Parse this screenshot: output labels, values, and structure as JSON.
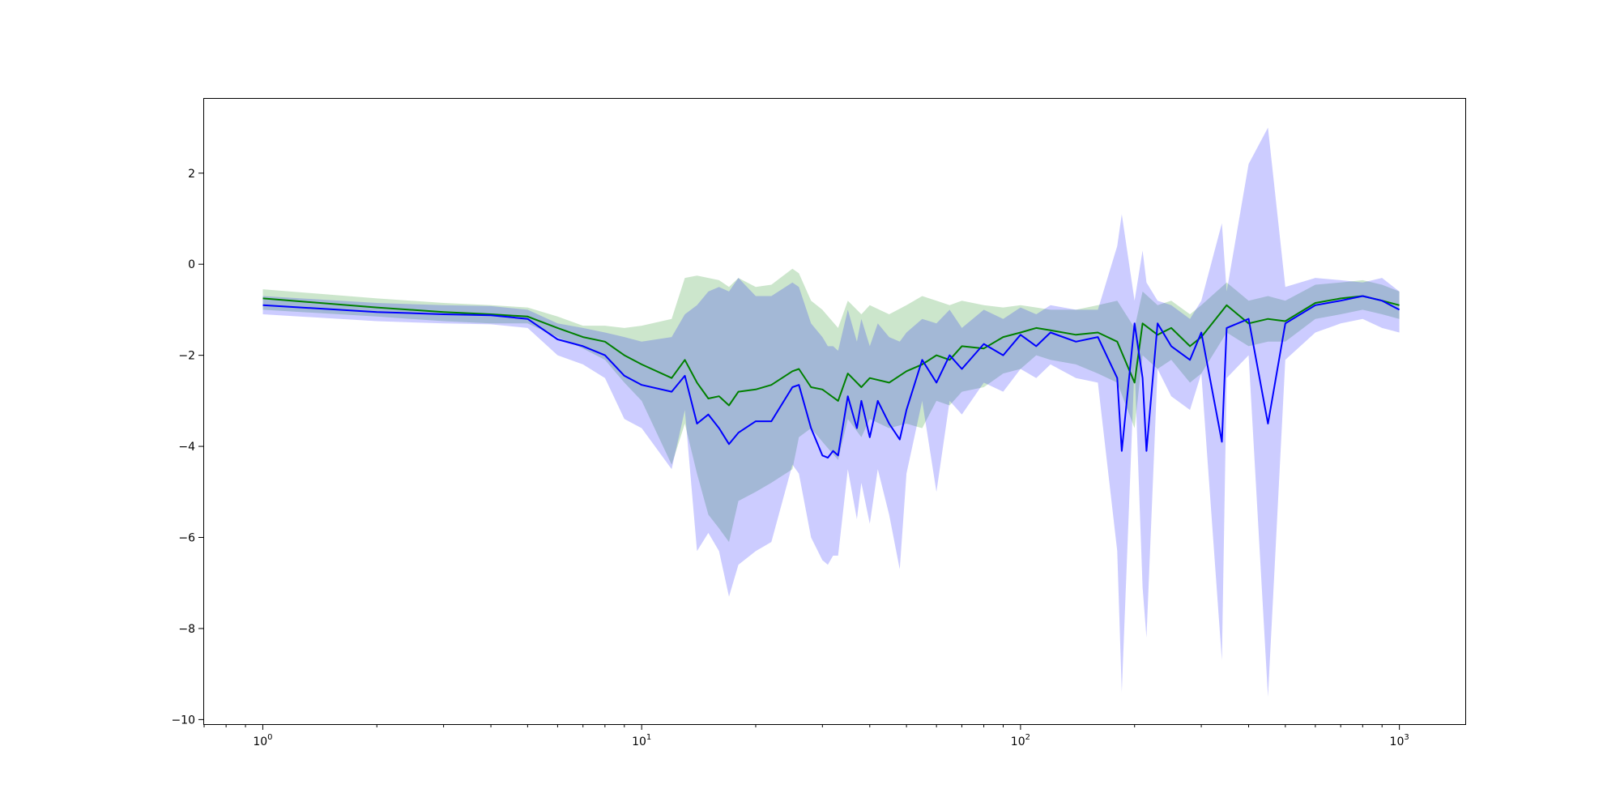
{
  "chart_data": {
    "type": "line",
    "title": "",
    "xlabel": "",
    "ylabel": "",
    "xscale": "log",
    "xlim": [
      0.7,
      1500
    ],
    "ylim": [
      -10.1,
      3.65
    ],
    "grid": false,
    "legend": "none",
    "x_ticks": [
      {
        "value": 1,
        "base": "10",
        "exp": "0"
      },
      {
        "value": 10,
        "base": "10",
        "exp": "1"
      },
      {
        "value": 100,
        "base": "10",
        "exp": "2"
      },
      {
        "value": 1000,
        "base": "10",
        "exp": "3"
      }
    ],
    "y_ticks": [
      {
        "value": 2,
        "label": "2"
      },
      {
        "value": 0,
        "label": "0"
      },
      {
        "value": -2,
        "label": "−2"
      },
      {
        "value": -4,
        "label": "−4"
      },
      {
        "value": -6,
        "label": "−6"
      },
      {
        "value": -8,
        "label": "−8"
      },
      {
        "value": -10,
        "label": "−10"
      }
    ],
    "colors": {
      "green_line": "#008000",
      "green_band": "#008000",
      "blue_line": "#0000ff",
      "blue_band": "#0000ff",
      "band_opacity": 0.2
    },
    "series": [
      {
        "color": "green",
        "x": [
          1,
          2,
          3,
          4,
          5,
          6,
          7,
          8,
          9,
          10,
          12,
          13,
          14,
          15,
          16,
          17,
          18,
          20,
          22,
          25,
          26,
          28,
          30,
          33,
          35,
          38,
          40,
          45,
          50,
          55,
          60,
          65,
          70,
          80,
          90,
          100,
          110,
          120,
          140,
          160,
          180,
          200,
          210,
          230,
          250,
          280,
          300,
          350,
          400,
          450,
          500,
          600,
          700,
          800,
          900,
          1000
        ],
        "mean": [
          -0.75,
          -0.95,
          -1.05,
          -1.1,
          -1.15,
          -1.4,
          -1.6,
          -1.7,
          -2.0,
          -2.2,
          -2.5,
          -2.1,
          -2.6,
          -2.95,
          -2.9,
          -3.1,
          -2.8,
          -2.75,
          -2.65,
          -2.35,
          -2.3,
          -2.7,
          -2.75,
          -3.0,
          -2.4,
          -2.7,
          -2.5,
          -2.6,
          -2.35,
          -2.2,
          -2.0,
          -2.1,
          -1.8,
          -1.85,
          -1.6,
          -1.5,
          -1.4,
          -1.45,
          -1.55,
          -1.5,
          -1.7,
          -2.6,
          -1.3,
          -1.55,
          -1.4,
          -1.8,
          -1.6,
          -0.9,
          -1.3,
          -1.2,
          -1.25,
          -0.85,
          -0.75,
          -0.7,
          -0.8,
          -0.9
        ],
        "lower": [
          -1.0,
          -1.15,
          -1.25,
          -1.3,
          -1.3,
          -1.6,
          -1.85,
          -2.1,
          -2.6,
          -3.0,
          -4.4,
          -3.5,
          -4.6,
          -5.5,
          -5.8,
          -6.1,
          -5.2,
          -5.0,
          -4.8,
          -4.5,
          -3.8,
          -3.6,
          -3.9,
          -4.3,
          -3.4,
          -3.8,
          -3.4,
          -3.6,
          -3.5,
          -3.6,
          -3.0,
          -3.1,
          -2.8,
          -2.7,
          -2.4,
          -2.3,
          -2.0,
          -2.1,
          -2.2,
          -2.4,
          -2.6,
          -3.6,
          -2.0,
          -2.3,
          -2.1,
          -2.6,
          -2.4,
          -1.5,
          -1.8,
          -1.7,
          -1.7,
          -1.2,
          -1.1,
          -1.0,
          -1.1,
          -1.2
        ],
        "upper": [
          -0.55,
          -0.75,
          -0.85,
          -0.9,
          -0.95,
          -1.15,
          -1.35,
          -1.35,
          -1.4,
          -1.35,
          -1.2,
          -0.3,
          -0.25,
          -0.3,
          -0.35,
          -0.5,
          -0.3,
          -0.5,
          -0.45,
          -0.1,
          -0.2,
          -0.8,
          -1.0,
          -1.4,
          -0.8,
          -1.1,
          -0.9,
          -1.1,
          -0.9,
          -0.7,
          -0.8,
          -0.9,
          -0.8,
          -0.9,
          -0.95,
          -0.9,
          -0.95,
          -1.0,
          -1.0,
          -0.9,
          -0.8,
          -1.4,
          -0.6,
          -0.9,
          -0.8,
          -1.1,
          -0.9,
          -0.4,
          -0.8,
          -0.7,
          -0.8,
          -0.45,
          -0.4,
          -0.35,
          -0.45,
          -0.6
        ]
      },
      {
        "color": "blue",
        "x": [
          1,
          2,
          3,
          4,
          5,
          6,
          7,
          8,
          9,
          10,
          12,
          13,
          14,
          15,
          16,
          17,
          18,
          20,
          22,
          25,
          26,
          28,
          30,
          31,
          32,
          33,
          35,
          37,
          38,
          40,
          42,
          45,
          48,
          50,
          55,
          60,
          65,
          70,
          80,
          90,
          100,
          110,
          120,
          140,
          160,
          180,
          185,
          200,
          210,
          215,
          230,
          250,
          280,
          300,
          340,
          350,
          400,
          450,
          500,
          600,
          700,
          800,
          900,
          1000
        ],
        "mean": [
          -0.9,
          -1.05,
          -1.1,
          -1.12,
          -1.2,
          -1.65,
          -1.8,
          -2.0,
          -2.45,
          -2.65,
          -2.8,
          -2.45,
          -3.5,
          -3.3,
          -3.6,
          -3.95,
          -3.7,
          -3.45,
          -3.45,
          -2.7,
          -2.65,
          -3.6,
          -4.2,
          -4.25,
          -4.1,
          -4.2,
          -2.9,
          -3.6,
          -3.0,
          -3.8,
          -3.0,
          -3.5,
          -3.85,
          -3.2,
          -2.1,
          -2.6,
          -2.0,
          -2.3,
          -1.75,
          -2.0,
          -1.55,
          -1.8,
          -1.5,
          -1.7,
          -1.6,
          -2.5,
          -4.1,
          -1.3,
          -2.5,
          -4.1,
          -1.3,
          -1.8,
          -2.1,
          -1.5,
          -3.9,
          -1.4,
          -1.2,
          -3.5,
          -1.3,
          -0.9,
          -0.8,
          -0.7,
          -0.8,
          -1.0
        ],
        "lower": [
          -1.1,
          -1.25,
          -1.3,
          -1.32,
          -1.4,
          -2.0,
          -2.2,
          -2.5,
          -3.4,
          -3.6,
          -4.5,
          -3.2,
          -6.3,
          -5.9,
          -6.3,
          -7.3,
          -6.6,
          -6.3,
          -6.1,
          -4.4,
          -4.6,
          -6.0,
          -6.5,
          -6.6,
          -6.4,
          -6.4,
          -4.5,
          -5.6,
          -4.8,
          -5.7,
          -4.5,
          -5.5,
          -6.7,
          -4.6,
          -3.0,
          -5.0,
          -3.0,
          -3.3,
          -2.6,
          -2.8,
          -2.3,
          -2.5,
          -2.2,
          -2.5,
          -2.6,
          -6.3,
          -9.4,
          -2.2,
          -7.1,
          -8.2,
          -2.3,
          -2.9,
          -3.2,
          -2.4,
          -8.7,
          -2.5,
          -2.0,
          -9.5,
          -2.1,
          -1.5,
          -1.3,
          -1.2,
          -1.4,
          -1.5
        ],
        "upper": [
          -0.7,
          -0.85,
          -0.9,
          -0.92,
          -1.0,
          -1.3,
          -1.4,
          -1.5,
          -1.6,
          -1.7,
          -1.6,
          -1.1,
          -0.9,
          -0.6,
          -0.5,
          -0.6,
          -0.3,
          -0.7,
          -0.7,
          -0.4,
          -0.5,
          -1.3,
          -1.6,
          -1.8,
          -1.8,
          -1.9,
          -1.0,
          -1.7,
          -1.2,
          -1.8,
          -1.3,
          -1.6,
          -1.7,
          -1.5,
          -1.2,
          -1.3,
          -1.0,
          -1.4,
          -1.0,
          -1.2,
          -0.95,
          -1.1,
          -0.9,
          -1.0,
          -1.0,
          0.4,
          1.1,
          -0.8,
          0.3,
          -0.4,
          -0.8,
          -0.9,
          -1.2,
          -0.8,
          0.9,
          -0.6,
          2.2,
          3.0,
          -0.5,
          -0.3,
          -0.35,
          -0.4,
          -0.3,
          -0.6
        ]
      }
    ]
  }
}
